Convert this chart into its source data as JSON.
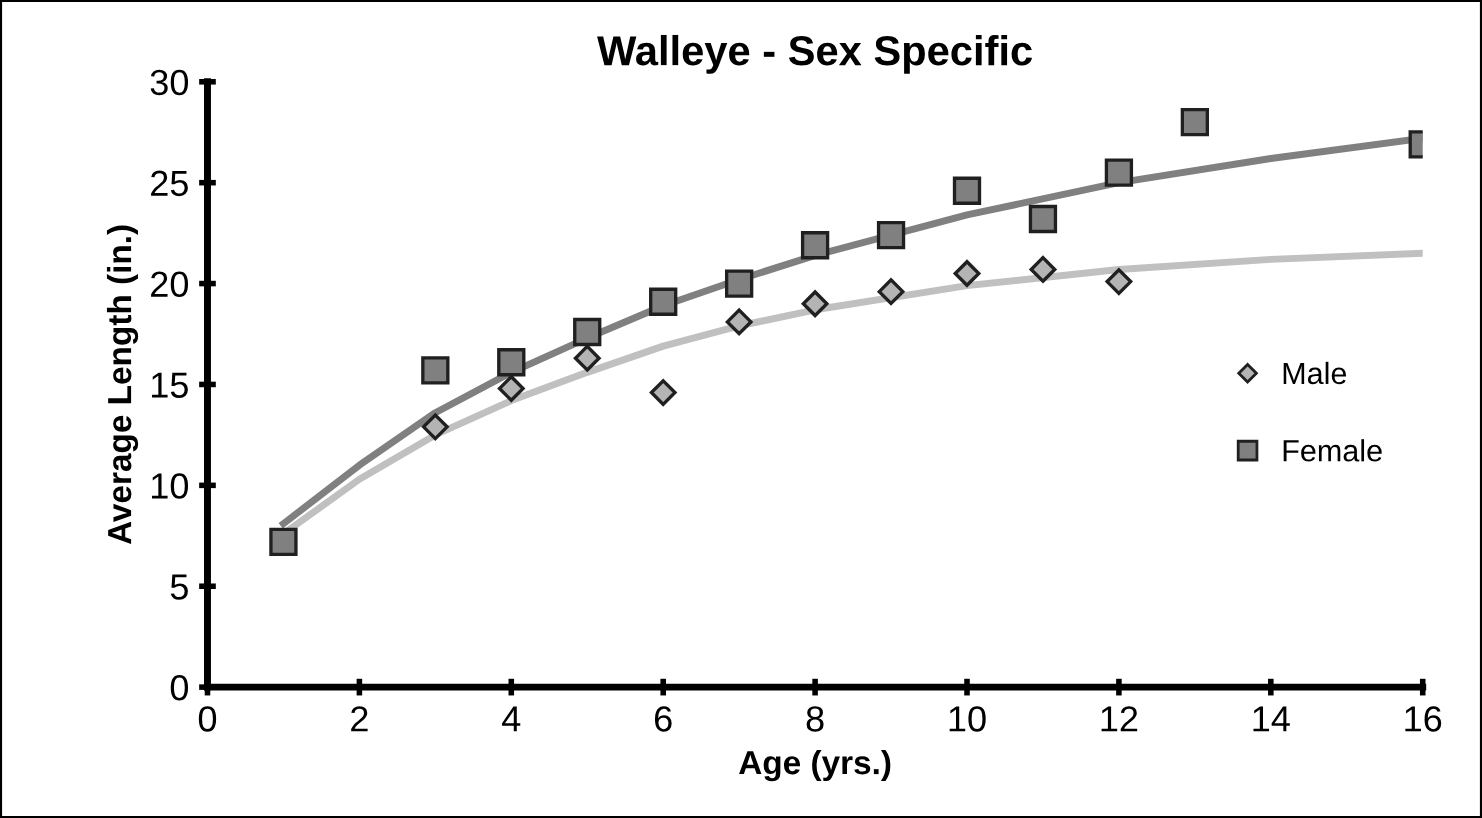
{
  "chart_data": {
    "type": "scatter",
    "title": "Walleye - Sex Specific",
    "xlabel": "Age (yrs.)",
    "ylabel": "Average Length (in.)",
    "xlim": [
      0,
      16
    ],
    "xticks": [
      0,
      2,
      4,
      6,
      8,
      10,
      12,
      14,
      16
    ],
    "ylim": [
      0,
      30
    ],
    "yticks": [
      0,
      5,
      10,
      15,
      20,
      25,
      30
    ],
    "grid": false,
    "legend": "right",
    "series": [
      {
        "name": "Male",
        "color": "#b4b4b4",
        "marker": "diamond",
        "x": [
          3,
          4,
          5,
          6,
          7,
          8,
          9,
          10,
          11,
          12
        ],
        "values": [
          12.9,
          14.8,
          16.3,
          14.6,
          18.1,
          19.0,
          19.6,
          20.5,
          20.7,
          20.1
        ]
      },
      {
        "name": "Female",
        "color": "#808080",
        "marker": "square",
        "x": [
          1,
          3,
          4,
          5,
          6,
          7,
          8,
          9,
          10,
          11,
          12,
          13,
          16
        ],
        "values": [
          7.2,
          15.7,
          16.1,
          17.6,
          19.1,
          20.0,
          21.9,
          22.4,
          24.6,
          23.2,
          25.5,
          28.0,
          26.9
        ]
      },
      {
        "type": "line",
        "color": "#c0c0c0",
        "line_style": "solid",
        "marker": "none",
        "x": [
          1,
          2,
          3,
          4,
          5,
          6,
          7,
          8,
          10,
          12,
          14,
          16
        ],
        "values": [
          7.6,
          10.3,
          12.5,
          14.2,
          15.6,
          16.9,
          17.9,
          18.7,
          19.9,
          20.7,
          21.2,
          21.5
        ]
      },
      {
        "type": "line",
        "color": "#808080",
        "line_style": "solid",
        "marker": "none",
        "x": [
          1,
          2,
          3,
          4,
          5,
          6,
          7,
          8,
          10,
          12,
          14,
          16
        ],
        "values": [
          8.1,
          11.0,
          13.6,
          15.6,
          17.3,
          18.9,
          20.2,
          21.4,
          23.4,
          25.0,
          26.2,
          27.2
        ]
      }
    ]
  }
}
